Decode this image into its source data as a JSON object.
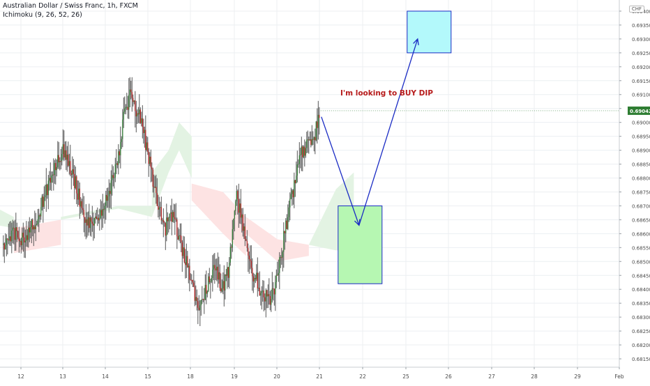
{
  "header": {
    "title": "Australian Dollar / Swiss Franc, 1h, FXCM",
    "indicator": "Ichimoku (9, 26, 52, 26)",
    "currency_badge": "CHF"
  },
  "annotation": {
    "text": "I'm looking to BUY DIP",
    "color": "#b71c1c"
  },
  "colors": {
    "up": "#2e7d32",
    "down": "#b71c1c",
    "wick": "#555555",
    "cloud_bull": "#e3f3e3",
    "cloud_bear": "#fde3e3",
    "arrow": "#1a2bc4",
    "box_buy": "#b6f7b2",
    "box_target": "#b3f9fb",
    "last_price_bg": "#2e7d32",
    "grid": "#eceff2"
  },
  "chart_data": {
    "type": "candlestick",
    "title": "Australian Dollar / Swiss Franc, 1h, FXCM",
    "xlabel": "",
    "ylabel": "",
    "ylim": [
      0.6812,
      0.6944
    ],
    "y_ticks": [
      "0.68150",
      "0.68200",
      "0.68250",
      "0.68300",
      "0.68350",
      "0.68400",
      "0.68450",
      "0.68500",
      "0.68550",
      "0.68600",
      "0.68650",
      "0.68700",
      "0.68750",
      "0.68800",
      "0.68850",
      "0.68900",
      "0.68950",
      "0.69000",
      "0.69050",
      "0.69100",
      "0.69150",
      "0.69200",
      "0.69250",
      "0.69300",
      "0.69350",
      "0.69400"
    ],
    "x_ticks": [
      "12",
      "13",
      "14",
      "15",
      "18",
      "19",
      "20",
      "21",
      "22",
      "25",
      "26",
      "27",
      "28",
      "29",
      "Feb"
    ],
    "last_price": "0.69042",
    "grid": true,
    "price_path_hourly": [
      [
        0,
        0.6856
      ],
      [
        10,
        0.6861
      ],
      [
        20,
        0.6857
      ],
      [
        35,
        0.6868
      ],
      [
        45,
        0.688
      ],
      [
        52,
        0.6886
      ],
      [
        58,
        0.689
      ],
      [
        66,
        0.6882
      ],
      [
        76,
        0.6868
      ],
      [
        85,
        0.6862
      ],
      [
        95,
        0.687
      ],
      [
        102,
        0.6876
      ],
      [
        110,
        0.6888
      ],
      [
        116,
        0.6905
      ],
      [
        122,
        0.691
      ],
      [
        130,
        0.6902
      ],
      [
        138,
        0.689
      ],
      [
        146,
        0.6872
      ],
      [
        155,
        0.6862
      ],
      [
        162,
        0.6868
      ],
      [
        170,
        0.6856
      ],
      [
        178,
        0.6845
      ],
      [
        186,
        0.6834
      ],
      [
        194,
        0.684
      ],
      [
        202,
        0.6848
      ],
      [
        210,
        0.684
      ],
      [
        216,
        0.6848
      ],
      [
        222,
        0.6874
      ],
      [
        230,
        0.6862
      ],
      [
        238,
        0.6846
      ],
      [
        246,
        0.684
      ],
      [
        254,
        0.6836
      ],
      [
        262,
        0.6844
      ],
      [
        268,
        0.6858
      ],
      [
        274,
        0.687
      ],
      [
        280,
        0.6882
      ],
      [
        286,
        0.689
      ],
      [
        292,
        0.6893
      ],
      [
        298,
        0.6896
      ],
      [
        302,
        0.6903
      ]
    ],
    "cloud_segments": [
      {
        "bias": "bullish",
        "points": [
          [
            -20,
            0.6872,
            0.6864
          ],
          [
            10,
            0.6866,
            0.6862
          ]
        ]
      },
      {
        "bias": "bearish",
        "points": [
          [
            10,
            0.6862,
            0.6853
          ],
          [
            55,
            0.6865,
            0.6856
          ]
        ]
      },
      {
        "bias": "bullish",
        "points": [
          [
            55,
            0.6865,
            0.6866
          ],
          [
            110,
            0.687,
            0.6869
          ],
          [
            142,
            0.687,
            0.6866
          ]
        ]
      },
      {
        "bias": "bullish",
        "points": [
          [
            142,
            0.6882,
            0.6866
          ],
          [
            158,
            0.689,
            0.6882
          ],
          [
            168,
            0.69,
            0.689
          ],
          [
            180,
            0.6895,
            0.688
          ]
        ]
      },
      {
        "bias": "bearish",
        "points": [
          [
            180,
            0.6878,
            0.6872
          ],
          [
            210,
            0.6875,
            0.686
          ],
          [
            232,
            0.6866,
            0.6852
          ]
        ]
      },
      {
        "bias": "bearish",
        "points": [
          [
            232,
            0.6866,
            0.686
          ],
          [
            262,
            0.6858,
            0.685
          ],
          [
            292,
            0.6856,
            0.6852
          ]
        ]
      },
      {
        "bias": "bullish",
        "points": [
          [
            292,
            0.6856,
            0.6856
          ],
          [
            318,
            0.6876,
            0.6854
          ],
          [
            335,
            0.6882,
            0.6854
          ]
        ]
      }
    ],
    "zones": [
      {
        "name": "buy-zone",
        "x_range": [
          320,
          362
        ],
        "y_range": [
          0.6842,
          0.687
        ]
      },
      {
        "name": "target-zone",
        "x_range": [
          386,
          428
        ],
        "y_range": [
          0.6925,
          0.694
        ]
      }
    ],
    "arrows": [
      {
        "from": [
          304,
          0.6902
        ],
        "to": [
          340,
          0.6863
        ]
      },
      {
        "from": [
          340,
          0.6863
        ],
        "to": [
          396,
          0.693
        ]
      }
    ]
  }
}
